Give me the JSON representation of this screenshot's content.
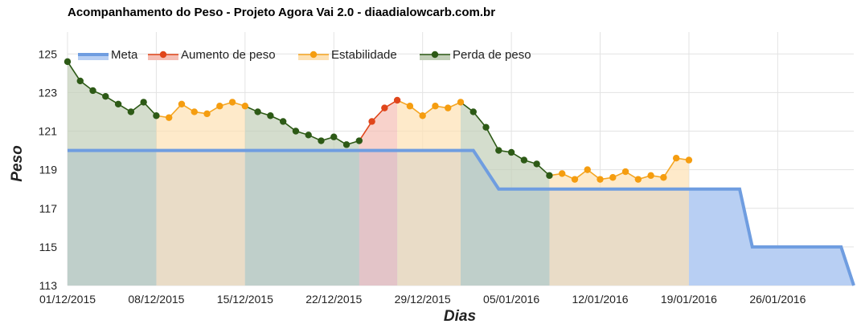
{
  "chart_data": {
    "type": "area",
    "title": "Acompanhamento do Peso - Projeto Agora Vai 2.0 - diaadialowcarb.com.br",
    "xlabel": "Dias",
    "ylabel": "Peso",
    "x_start": "01/12/2015",
    "x_ticks": [
      "01/12/2015",
      "08/12/2015",
      "15/12/2015",
      "22/12/2015",
      "29/12/2015",
      "05/01/2016",
      "12/01/2016",
      "19/01/2016",
      "26/01/2016"
    ],
    "y_ticks": [
      113,
      115,
      117,
      119,
      121,
      123,
      125
    ],
    "ylim": [
      113,
      125.8
    ],
    "xlim": [
      "01/12/2015",
      "01/02/2016"
    ],
    "grid": true,
    "legend_position": "top-left",
    "colors": {
      "meta_line": "#6f9de0",
      "meta_fill": "#b8cff3",
      "aumento_line": "#e0461b",
      "aumento_fill": "#f5bfb5",
      "estabilidade_marker": "#f59d10",
      "estabilidade_line": "#f5a623",
      "estabilidade_fill": "#fde1b4",
      "perda_line": "#2d5a16",
      "perda_fill": "#c2cfb8",
      "grid": "#e3e3e3"
    },
    "legend": [
      {
        "key": "meta",
        "label": "Meta"
      },
      {
        "key": "aumento",
        "label": "Aumento de peso"
      },
      {
        "key": "estabilidade",
        "label": "Estabilidade"
      },
      {
        "key": "perda",
        "label": "Perda de peso"
      }
    ],
    "meta": {
      "name": "Meta",
      "points": [
        {
          "x": "01/12/2015",
          "y": 120
        },
        {
          "x": "02/01/2016",
          "y": 120
        },
        {
          "x": "04/01/2016",
          "y": 118
        },
        {
          "x": "23/01/2016",
          "y": 118
        },
        {
          "x": "24/01/2016",
          "y": 115
        },
        {
          "x": "31/01/2016",
          "y": 115
        },
        {
          "x": "01/02/2016",
          "y": 113
        }
      ]
    },
    "weight": {
      "start_date": "01/12/2015",
      "dates": [
        "01/12/2015",
        "02/12/2015",
        "03/12/2015",
        "04/12/2015",
        "05/12/2015",
        "06/12/2015",
        "07/12/2015",
        "08/12/2015",
        "09/12/2015",
        "10/12/2015",
        "11/12/2015",
        "12/12/2015",
        "13/12/2015",
        "14/12/2015",
        "15/12/2015",
        "16/12/2015",
        "17/12/2015",
        "18/12/2015",
        "19/12/2015",
        "20/12/2015",
        "21/12/2015",
        "22/12/2015",
        "23/12/2015",
        "24/12/2015",
        "25/12/2015",
        "26/12/2015",
        "27/12/2015",
        "28/12/2015",
        "29/12/2015",
        "30/12/2015",
        "31/12/2015",
        "01/01/2016",
        "02/01/2016",
        "03/01/2016",
        "04/01/2016",
        "05/01/2016",
        "06/01/2016",
        "07/01/2016",
        "08/01/2016",
        "09/01/2016",
        "10/01/2016",
        "11/01/2016",
        "12/01/2016",
        "13/01/2016",
        "14/01/2016",
        "15/01/2016",
        "16/01/2016",
        "17/01/2016",
        "18/01/2016",
        "19/01/2016"
      ],
      "values": [
        124.6,
        123.6,
        123.1,
        122.8,
        122.4,
        122.0,
        122.5,
        121.8,
        121.7,
        122.4,
        122.0,
        121.9,
        122.3,
        122.5,
        122.3,
        122.0,
        121.8,
        121.5,
        121.0,
        120.8,
        120.5,
        120.7,
        120.3,
        120.5,
        121.5,
        122.2,
        122.6,
        122.3,
        121.8,
        122.3,
        122.2,
        122.5,
        122.0,
        121.2,
        120.0,
        119.9,
        119.5,
        119.3,
        118.7,
        118.8,
        118.5,
        119.0,
        118.5,
        118.6,
        118.9,
        118.5,
        118.7,
        118.6,
        119.6,
        119.5
      ]
    },
    "segments": [
      {
        "type": "perda",
        "start": "01/12/2015",
        "end": "08/12/2015"
      },
      {
        "type": "estabilidade",
        "start": "08/12/2015",
        "end": "15/12/2015"
      },
      {
        "type": "perda",
        "start": "15/12/2015",
        "end": "24/12/2015"
      },
      {
        "type": "aumento",
        "start": "24/12/2015",
        "end": "27/12/2015"
      },
      {
        "type": "estabilidade",
        "start": "27/12/2015",
        "end": "01/01/2016"
      },
      {
        "type": "perda",
        "start": "01/01/2016",
        "end": "08/01/2016"
      },
      {
        "type": "estabilidade",
        "start": "08/01/2016",
        "end": "19/01/2016"
      }
    ]
  }
}
